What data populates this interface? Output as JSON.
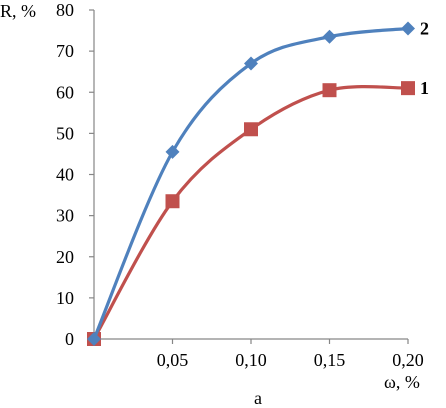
{
  "chart_data": {
    "type": "line",
    "ylabel": "R, %",
    "xlabel": "ω, %",
    "caption": "a",
    "x": [
      0,
      0.05,
      0.1,
      0.15,
      0.2
    ],
    "xticks": [
      "0,05",
      "0,10",
      "0,15",
      "0,20"
    ],
    "xtick_values": [
      0.05,
      0.1,
      0.15,
      0.2
    ],
    "yticks": [
      "0",
      "10",
      "20",
      "30",
      "40",
      "50",
      "60",
      "70",
      "80"
    ],
    "ytick_values": [
      0,
      10,
      20,
      30,
      40,
      50,
      60,
      70,
      80
    ],
    "xlim": [
      0,
      0.2
    ],
    "ylim": [
      0,
      80
    ],
    "grid": false,
    "smooth": true,
    "series": [
      {
        "name": "1",
        "values": [
          0,
          33.5,
          51,
          60.5,
          61
        ],
        "color": "#c0504d",
        "marker": "square"
      },
      {
        "name": "2",
        "values": [
          0,
          45.5,
          67,
          73.5,
          75.5
        ],
        "color": "#4f81bd",
        "marker": "diamond"
      }
    ]
  }
}
